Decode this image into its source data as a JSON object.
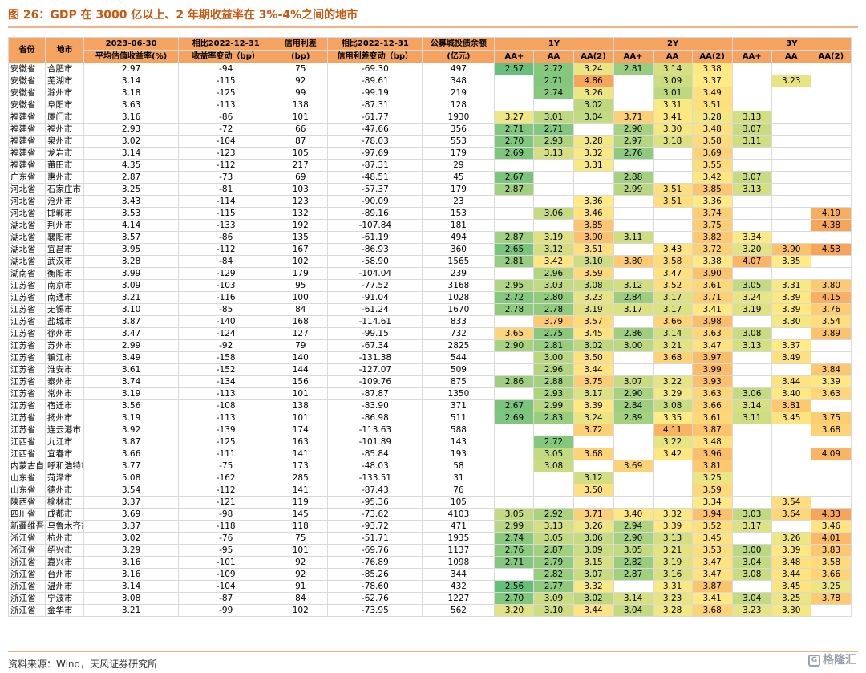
{
  "title": "图 26：GDP 在 3000 亿以上、2 年期收益率在 3%-4%之间的地市",
  "source": "资料来源：Wind，天风证券研究所",
  "watermark": "格隆汇",
  "colors": {
    "header": "#f4a460",
    "low": "#63be7b",
    "mid": "#ffeb84",
    "high": "#f8a55c"
  },
  "headers": {
    "province": "省份",
    "city": "地市",
    "yield_top": "2023-06-30",
    "yield_bottom": "平均估值收益率(%)",
    "yield_chg_top": "相比2022-12-31",
    "yield_chg_bottom": "收益率变动（bp）",
    "spread_top": "信用利差",
    "spread_bottom": "(bp)",
    "spread_chg_top": "相比2022-12-31",
    "spread_chg_bottom": "信用利差变动（bp）",
    "balance_top": "公募城投债余额",
    "balance_bottom": "(亿元)",
    "groups": [
      "1Y",
      "2Y",
      "3Y"
    ],
    "ratings": [
      "AA+",
      "AA",
      "AA(2)"
    ]
  },
  "rows": [
    [
      "安徽省",
      "合肥市",
      "2.97",
      "-94",
      "75",
      "-69.30",
      "497",
      "2.57",
      "2.72",
      "3.24",
      "2.81",
      "3.14",
      "3.38",
      "",
      "",
      ""
    ],
    [
      "安徽省",
      "芜湖市",
      "3.14",
      "-115",
      "92",
      "-89.61",
      "348",
      "",
      "2.71",
      "4.86",
      "",
      "3.09",
      "3.37",
      "",
      "3.23",
      ""
    ],
    [
      "安徽省",
      "滁州市",
      "3.18",
      "-125",
      "99",
      "-99.19",
      "219",
      "",
      "2.74",
      "3.26",
      "",
      "3.01",
      "3.49",
      "",
      "",
      ""
    ],
    [
      "安徽省",
      "阜阳市",
      "3.63",
      "-113",
      "138",
      "-87.31",
      "128",
      "",
      "",
      "3.02",
      "",
      "3.31",
      "3.51",
      "",
      "",
      ""
    ],
    [
      "福建省",
      "厦门市",
      "3.16",
      "-86",
      "101",
      "-61.77",
      "1930",
      "3.27",
      "3.01",
      "3.04",
      "3.71",
      "3.41",
      "3.28",
      "3.13",
      "",
      ""
    ],
    [
      "福建省",
      "福州市",
      "2.93",
      "-72",
      "66",
      "-47.66",
      "356",
      "2.71",
      "2.71",
      "",
      "2.90",
      "3.30",
      "3.48",
      "3.07",
      "",
      ""
    ],
    [
      "福建省",
      "泉州市",
      "3.02",
      "-104",
      "87",
      "-78.03",
      "553",
      "2.70",
      "2.93",
      "3.28",
      "2.97",
      "3.18",
      "3.58",
      "3.11",
      "",
      ""
    ],
    [
      "福建省",
      "龙岩市",
      "3.14",
      "-123",
      "105",
      "-97.69",
      "179",
      "2.69",
      "3.13",
      "3.32",
      "2.76",
      "",
      "3.69",
      "",
      "",
      ""
    ],
    [
      "福建省",
      "莆田市",
      "4.35",
      "-112",
      "217",
      "-87.31",
      "29",
      "",
      "",
      "3.31",
      "",
      "",
      "3.55",
      "",
      "",
      ""
    ],
    [
      "广东省",
      "惠州市",
      "2.87",
      "-73",
      "69",
      "-48.51",
      "45",
      "2.67",
      "",
      "",
      "2.88",
      "",
      "3.42",
      "3.07",
      "",
      ""
    ],
    [
      "河北省",
      "石家庄市",
      "3.25",
      "-81",
      "103",
      "-57.37",
      "179",
      "2.87",
      "",
      "",
      "2.99",
      "3.51",
      "3.85",
      "3.13",
      "",
      ""
    ],
    [
      "河北省",
      "沧州市",
      "3.43",
      "-114",
      "123",
      "-90.09",
      "23",
      "",
      "",
      "3.36",
      "",
      "3.51",
      "3.36",
      "",
      "",
      ""
    ],
    [
      "河北省",
      "邯郸市",
      "3.53",
      "-115",
      "132",
      "-89.16",
      "153",
      "",
      "3.06",
      "3.46",
      "",
      "",
      "3.74",
      "",
      "",
      "4.19"
    ],
    [
      "湖北省",
      "荆州市",
      "4.14",
      "-133",
      "192",
      "-107.84",
      "181",
      "",
      "",
      "3.85",
      "",
      "",
      "3.75",
      "",
      "",
      "4.38"
    ],
    [
      "湖北省",
      "襄阳市",
      "3.57",
      "-86",
      "135",
      "-61.19",
      "494",
      "2.87",
      "3.19",
      "3.90",
      "3.11",
      "",
      "3.82",
      "3.34",
      "",
      ""
    ],
    [
      "湖北省",
      "宜昌市",
      "3.95",
      "-112",
      "167",
      "-86.93",
      "360",
      "2.65",
      "3.12",
      "3.51",
      "",
      "3.43",
      "3.72",
      "3.20",
      "3.90",
      "4.53"
    ],
    [
      "湖北省",
      "武汉市",
      "3.28",
      "-84",
      "102",
      "-58.90",
      "1565",
      "2.81",
      "3.42",
      "3.10",
      "3.80",
      "3.58",
      "3.38",
      "4.07",
      "3.35",
      ""
    ],
    [
      "湖南省",
      "衡阳市",
      "3.99",
      "-129",
      "179",
      "-104.04",
      "239",
      "",
      "2.96",
      "3.59",
      "",
      "3.47",
      "3.90",
      "",
      "",
      ""
    ],
    [
      "江苏省",
      "南京市",
      "3.09",
      "-103",
      "95",
      "-77.52",
      "3168",
      "2.95",
      "3.03",
      "3.08",
      "3.12",
      "3.52",
      "3.61",
      "3.05",
      "3.31",
      "3.80"
    ],
    [
      "江苏省",
      "南通市",
      "3.21",
      "-116",
      "100",
      "-91.04",
      "1028",
      "2.72",
      "2.80",
      "3.23",
      "2.84",
      "3.17",
      "3.71",
      "3.24",
      "3.39",
      "4.15"
    ],
    [
      "江苏省",
      "无锡市",
      "3.10",
      "-85",
      "84",
      "-61.24",
      "1670",
      "2.78",
      "2.78",
      "3.19",
      "3.17",
      "3.17",
      "3.41",
      "3.19",
      "3.39",
      "3.76"
    ],
    [
      "江苏省",
      "盐城市",
      "3.87",
      "-140",
      "168",
      "-114.61",
      "833",
      "",
      "3.79",
      "3.57",
      "",
      "3.66",
      "3.98",
      "",
      "3.30",
      "3.54"
    ],
    [
      "江苏省",
      "徐州市",
      "3.47",
      "-124",
      "127",
      "-99.15",
      "732",
      "3.65",
      "2.75",
      "3.45",
      "2.86",
      "3.14",
      "3.63",
      "3.08",
      "",
      "3.89"
    ],
    [
      "江苏省",
      "苏州市",
      "2.99",
      "-92",
      "79",
      "-67.34",
      "2825",
      "2.90",
      "2.81",
      "3.02",
      "3.00",
      "3.21",
      "3.47",
      "3.13",
      "3.37",
      ""
    ],
    [
      "江苏省",
      "镇江市",
      "3.49",
      "-158",
      "140",
      "-131.38",
      "544",
      "",
      "3.00",
      "3.50",
      "",
      "3.68",
      "3.97",
      "",
      "3.49",
      ""
    ],
    [
      "江苏省",
      "淮安市",
      "3.61",
      "-152",
      "144",
      "-127.07",
      "509",
      "",
      "2.96",
      "3.44",
      "",
      "",
      "3.99",
      "",
      "",
      "3.84"
    ],
    [
      "江苏省",
      "泰州市",
      "3.74",
      "-134",
      "156",
      "-109.76",
      "875",
      "2.86",
      "2.88",
      "3.75",
      "3.07",
      "3.22",
      "3.93",
      "",
      "3.44",
      "3.39"
    ],
    [
      "江苏省",
      "常州市",
      "3.19",
      "-113",
      "101",
      "-87.87",
      "1350",
      "",
      "2.93",
      "3.17",
      "2.90",
      "3.29",
      "3.63",
      "3.06",
      "3.40",
      "3.63"
    ],
    [
      "江苏省",
      "宿迁市",
      "3.56",
      "-108",
      "138",
      "-83.90",
      "371",
      "2.67",
      "2.99",
      "3.39",
      "2.84",
      "3.08",
      "3.66",
      "3.14",
      "3.81",
      ""
    ],
    [
      "江苏省",
      "扬州市",
      "3.19",
      "-113",
      "101",
      "-86.98",
      "511",
      "2.69",
      "2.83",
      "3.24",
      "2.89",
      "3.35",
      "3.61",
      "3.11",
      "3.45",
      "3.75"
    ],
    [
      "江苏省",
      "连云港市",
      "3.92",
      "-139",
      "174",
      "-113.63",
      "588",
      "",
      "",
      "3.72",
      "",
      "4.11",
      "3.87",
      "",
      "",
      "3.68"
    ],
    [
      "江西省",
      "九江市",
      "3.87",
      "-125",
      "163",
      "-101.89",
      "143",
      "",
      "2.72",
      "",
      "",
      "3.22",
      "3.48",
      "",
      "",
      ""
    ],
    [
      "江西省",
      "宜春市",
      "3.66",
      "-111",
      "141",
      "-85.84",
      "193",
      "",
      "3.05",
      "3.68",
      "",
      "3.42",
      "3.96",
      "",
      "",
      "4.09"
    ],
    [
      "内蒙古自治区",
      "呼和浩特市",
      "3.77",
      "-75",
      "173",
      "-48.03",
      "58",
      "",
      "3.08",
      "",
      "3.69",
      "",
      "3.81",
      "",
      "",
      ""
    ],
    [
      "山东省",
      "菏泽市",
      "5.08",
      "-162",
      "285",
      "-133.51",
      "31",
      "",
      "",
      "3.12",
      "",
      "",
      "3.25",
      "",
      "",
      ""
    ],
    [
      "山东省",
      "德州市",
      "3.54",
      "-112",
      "141",
      "-87.43",
      "76",
      "",
      "",
      "3.50",
      "",
      "",
      "3.59",
      "",
      "",
      ""
    ],
    [
      "陕西省",
      "榆林市",
      "3.37",
      "-121",
      "119",
      "-95.36",
      "105",
      "",
      "",
      "",
      "",
      "",
      "3.34",
      "",
      "3.54",
      ""
    ],
    [
      "四川省",
      "成都市",
      "3.69",
      "-98",
      "145",
      "-73.62",
      "4103",
      "3.05",
      "2.92",
      "3.71",
      "3.40",
      "3.32",
      "3.94",
      "3.03",
      "3.64",
      "4.33"
    ],
    [
      "新疆维吾尔自治区",
      "乌鲁木齐市",
      "3.37",
      "-118",
      "118",
      "-93.72",
      "471",
      "2.99",
      "3.13",
      "3.26",
      "2.94",
      "3.39",
      "3.52",
      "3.17",
      "",
      "3.46"
    ],
    [
      "浙江省",
      "杭州市",
      "3.02",
      "-76",
      "75",
      "-51.71",
      "1935",
      "2.74",
      "3.05",
      "3.06",
      "2.90",
      "3.13",
      "3.45",
      "",
      "3.26",
      "4.01"
    ],
    [
      "浙江省",
      "绍兴市",
      "3.29",
      "-95",
      "101",
      "-69.76",
      "1137",
      "2.76",
      "2.87",
      "3.09",
      "3.05",
      "3.21",
      "3.53",
      "3.00",
      "3.39",
      "3.83"
    ],
    [
      "浙江省",
      "嘉兴市",
      "3.16",
      "-101",
      "92",
      "-76.89",
      "1098",
      "2.71",
      "2.79",
      "3.15",
      "2.82",
      "3.19",
      "3.47",
      "3.04",
      "3.48",
      "3.58"
    ],
    [
      "浙江省",
      "台州市",
      "3.16",
      "-109",
      "92",
      "-85.26",
      "344",
      "",
      "2.82",
      "3.07",
      "2.87",
      "3.16",
      "3.47",
      "3.08",
      "3.44",
      "3.66"
    ],
    [
      "浙江省",
      "温州市",
      "3.14",
      "-104",
      "91",
      "-78.60",
      "432",
      "2.56",
      "2.77",
      "3.32",
      "",
      "3.31",
      "3.87",
      "",
      "3.45",
      "3.25"
    ],
    [
      "浙江省",
      "宁波市",
      "3.08",
      "-87",
      "84",
      "-62.76",
      "1227",
      "2.70",
      "3.09",
      "3.02",
      "3.14",
      "3.23",
      "3.41",
      "3.04",
      "3.25",
      "3.78"
    ],
    [
      "浙江省",
      "金华市",
      "3.21",
      "-99",
      "102",
      "-73.95",
      "562",
      "3.20",
      "3.10",
      "3.44",
      "3.04",
      "3.28",
      "3.68",
      "3.23",
      "3.30",
      ""
    ]
  ]
}
